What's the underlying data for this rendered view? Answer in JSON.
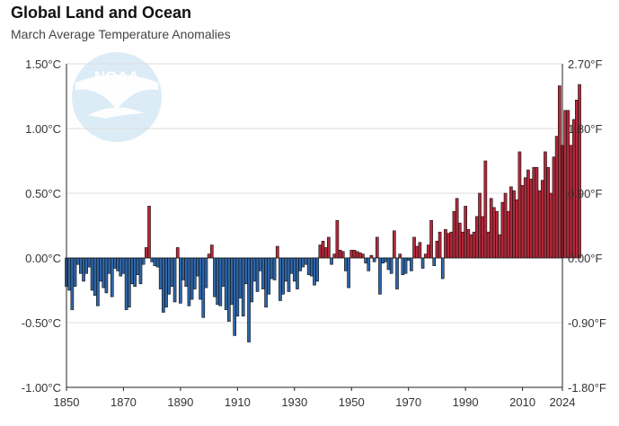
{
  "header": {
    "title": "Global Land and Ocean",
    "subtitle": "March Average Temperature Anomalies"
  },
  "logo": {
    "text": "NOAA"
  },
  "chart_data": {
    "type": "bar",
    "title": "Global Land and Ocean",
    "subtitle": "March Average Temperature Anomalies",
    "x_start": 1850,
    "x_end": 2024,
    "ylim": [
      -1.0,
      1.5
    ],
    "y_ticks": [
      {
        "value": -1.0,
        "label": "-1.00°C",
        "right_label": "-1.80°F"
      },
      {
        "value": -0.5,
        "label": "-0.50°C",
        "right_label": "-0.90°F"
      },
      {
        "value": 0.0,
        "label": "0.00°C",
        "right_label": "0.00°F"
      },
      {
        "value": 0.5,
        "label": "0.50°C",
        "right_label": "0.90°F"
      },
      {
        "value": 1.0,
        "label": "1.00°C",
        "right_label": "1.80°F"
      },
      {
        "value": 1.5,
        "label": "1.50°C",
        "right_label": "2.70°F"
      }
    ],
    "x_ticks": [
      {
        "value": 1850,
        "label": "1850"
      },
      {
        "value": 1870,
        "label": "1870"
      },
      {
        "value": 1890,
        "label": "1890"
      },
      {
        "value": 1910,
        "label": "1910"
      },
      {
        "value": 1930,
        "label": "1930"
      },
      {
        "value": 1950,
        "label": "1950"
      },
      {
        "value": 1970,
        "label": "1970"
      },
      {
        "value": 1990,
        "label": "1990"
      },
      {
        "value": 2010,
        "label": "2010"
      },
      {
        "value": 2024,
        "label": "2024"
      }
    ],
    "grid": true,
    "colors": {
      "positive": "#b5293a",
      "negative": "#2f66a8",
      "edge": "#111111",
      "grid": "#dddddd"
    },
    "values": [
      -0.22,
      -0.25,
      -0.4,
      -0.22,
      -0.05,
      -0.12,
      -0.18,
      -0.12,
      -0.07,
      -0.25,
      -0.29,
      -0.37,
      -0.18,
      -0.23,
      -0.27,
      -0.12,
      -0.3,
      -0.08,
      -0.1,
      -0.14,
      -0.12,
      -0.4,
      -0.38,
      -0.2,
      -0.22,
      -0.13,
      -0.2,
      -0.05,
      0.08,
      0.4,
      -0.03,
      -0.06,
      -0.07,
      -0.24,
      -0.42,
      -0.38,
      -0.28,
      -0.22,
      -0.34,
      0.08,
      -0.35,
      -0.17,
      -0.22,
      -0.37,
      -0.32,
      -0.24,
      -0.14,
      -0.32,
      -0.46,
      -0.23,
      0.03,
      0.1,
      -0.3,
      -0.36,
      -0.37,
      -0.22,
      -0.4,
      -0.49,
      -0.36,
      -0.6,
      -0.45,
      -0.31,
      -0.45,
      -0.2,
      -0.65,
      -0.34,
      -0.18,
      -0.26,
      -0.1,
      -0.24,
      -0.38,
      -0.28,
      -0.16,
      -0.17,
      0.09,
      -0.33,
      -0.28,
      -0.18,
      -0.26,
      -0.12,
      -0.18,
      -0.24,
      -0.1,
      -0.07,
      -0.05,
      -0.13,
      -0.14,
      -0.21,
      -0.18,
      0.1,
      0.13,
      0.08,
      0.16,
      -0.05,
      0.03,
      0.29,
      0.06,
      0.05,
      -0.1,
      -0.23,
      0.06,
      0.06,
      0.05,
      0.04,
      0.03,
      -0.04,
      -0.1,
      0.02,
      -0.03,
      0.16,
      -0.28,
      -0.04,
      -0.03,
      -0.09,
      -0.12,
      0.21,
      -0.24,
      0.03,
      -0.13,
      -0.12,
      -0.02,
      -0.1,
      0.16,
      0.09,
      0.12,
      -0.08,
      0.03,
      0.1,
      0.29,
      -0.06,
      0.13,
      0.2,
      -0.16,
      0.22,
      0.19,
      0.2,
      0.36,
      0.46,
      0.27,
      0.2,
      0.4,
      0.22,
      0.18,
      0.2,
      0.32,
      0.5,
      0.32,
      0.75,
      0.2,
      0.46,
      0.39,
      0.36,
      0.18,
      0.43,
      0.5,
      0.36,
      0.55,
      0.52,
      0.45,
      0.82,
      0.56,
      0.62,
      0.68,
      0.61,
      0.7,
      0.7,
      0.52,
      0.6,
      0.82,
      0.7,
      0.5,
      0.78,
      0.94,
      1.33,
      0.87,
      1.14,
      1.14,
      0.87,
      1.07,
      1.22,
      1.34
    ]
  }
}
